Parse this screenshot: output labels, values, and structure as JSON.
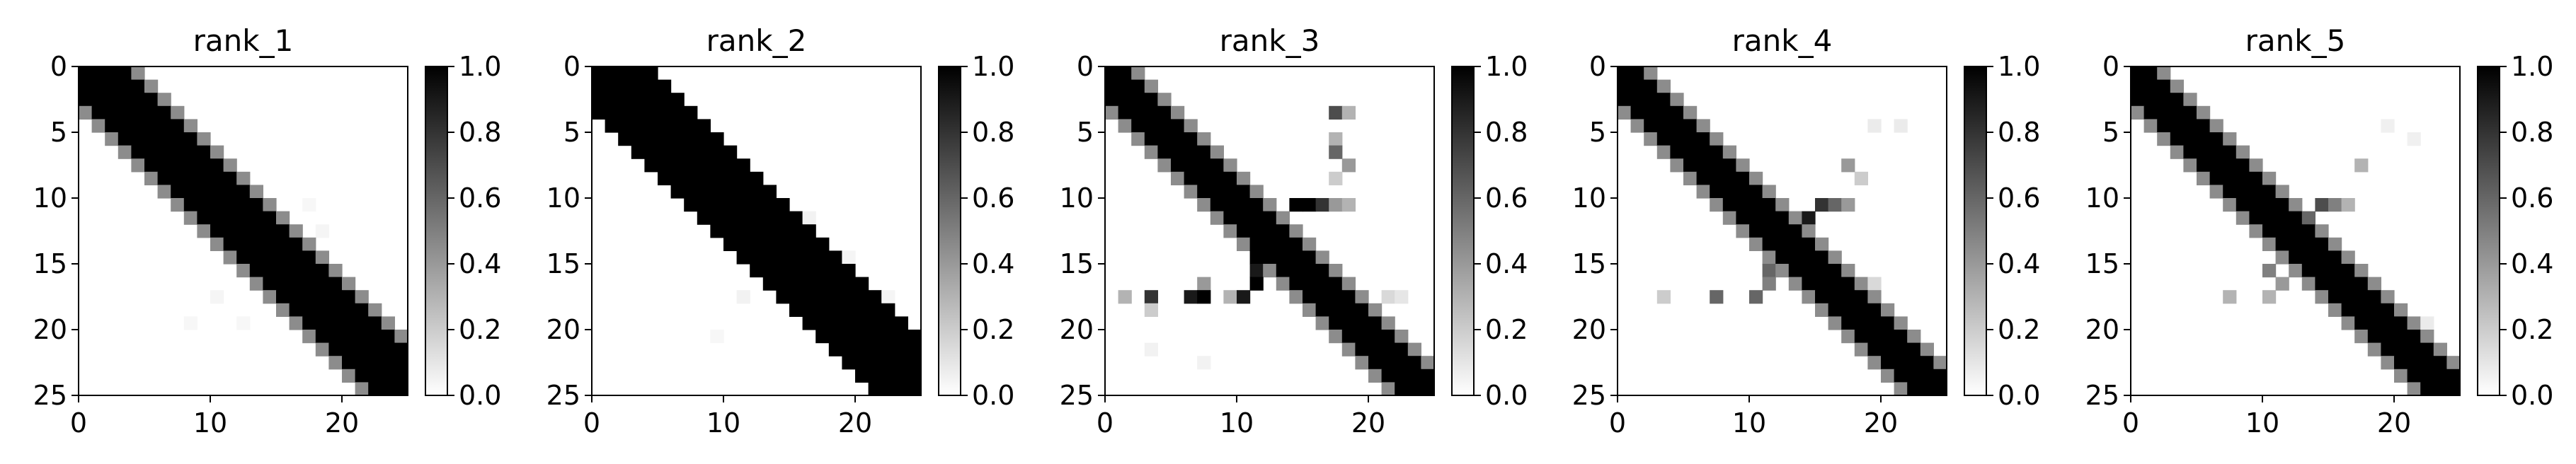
{
  "figure": {
    "background": "#ffffff",
    "colormap": "gray_r (0 = white, 1 = black)"
  },
  "chart_data": [
    {
      "type": "heatmap",
      "title": "rank_1",
      "x_ticks": [
        0,
        10,
        20
      ],
      "y_ticks": [
        0,
        5,
        10,
        15,
        20,
        25
      ],
      "xlim": [
        0,
        25
      ],
      "ylim": [
        25,
        0
      ],
      "colorbar": {
        "ticks": [
          "0.0",
          "0.2",
          "0.4",
          "0.6",
          "0.8",
          "1.0"
        ],
        "range": [
          0,
          1
        ]
      },
      "matrix_size": 25,
      "band": {
        "width": 6.5,
        "start_offset": 0.5,
        "slope": 1.0
      },
      "extra_cells": [
        {
          "x": 15,
          "y": 11,
          "value": 0.04
        },
        {
          "x": 16,
          "y": 12,
          "value": 0.05
        },
        {
          "x": 17,
          "y": 10,
          "value": 0.03
        },
        {
          "x": 18,
          "y": 12,
          "value": 0.04
        },
        {
          "x": 10,
          "y": 17,
          "value": 0.04
        },
        {
          "x": 8,
          "y": 19,
          "value": 0.03
        },
        {
          "x": 12,
          "y": 19,
          "value": 0.03
        }
      ]
    },
    {
      "type": "heatmap",
      "title": "rank_2",
      "x_ticks": [
        0,
        10,
        20
      ],
      "y_ticks": [
        0,
        5,
        10,
        15,
        20,
        25
      ],
      "xlim": [
        0,
        25
      ],
      "ylim": [
        25,
        0
      ],
      "colorbar": {
        "ticks": [
          "0.0",
          "0.2",
          "0.4",
          "0.6",
          "0.8",
          "1.0"
        ],
        "range": [
          0,
          1
        ]
      },
      "matrix_size": 25,
      "band": {
        "width": 7.0,
        "start_offset": 0.5,
        "slope": 1.0
      },
      "extra_cells": [
        {
          "x": 16,
          "y": 11,
          "value": 0.05
        },
        {
          "x": 17,
          "y": 13,
          "value": 0.05
        },
        {
          "x": 19,
          "y": 14,
          "value": 0.04
        },
        {
          "x": 11,
          "y": 17,
          "value": 0.05
        },
        {
          "x": 9,
          "y": 20,
          "value": 0.03
        },
        {
          "x": 22,
          "y": 17,
          "value": 0.04
        }
      ]
    },
    {
      "type": "heatmap",
      "title": "rank_3",
      "x_ticks": [
        0,
        10,
        20
      ],
      "y_ticks": [
        0,
        5,
        10,
        15,
        20,
        25
      ],
      "xlim": [
        0,
        25
      ],
      "ylim": [
        25,
        0
      ],
      "colorbar": {
        "ticks": [
          "0.0",
          "0.2",
          "0.4",
          "0.6",
          "0.8",
          "1.0"
        ],
        "range": [
          0,
          1
        ]
      },
      "matrix_size": 25,
      "band": {
        "width": 4.5,
        "start_offset": -0.5,
        "slope": 1.0
      },
      "extra_cells": [
        {
          "x": 17,
          "y": 3,
          "value": 0.7
        },
        {
          "x": 18,
          "y": 3,
          "value": 0.3
        },
        {
          "x": 17,
          "y": 5,
          "value": 0.3
        },
        {
          "x": 17,
          "y": 6,
          "value": 0.6
        },
        {
          "x": 18,
          "y": 7,
          "value": 0.4
        },
        {
          "x": 17,
          "y": 8,
          "value": 0.2
        },
        {
          "x": 14,
          "y": 10,
          "value": 1.0
        },
        {
          "x": 15,
          "y": 10,
          "value": 1.0
        },
        {
          "x": 16,
          "y": 10,
          "value": 0.8
        },
        {
          "x": 17,
          "y": 10,
          "value": 0.4
        },
        {
          "x": 18,
          "y": 10,
          "value": 0.3
        },
        {
          "x": 11,
          "y": 13,
          "value": 1.0
        },
        {
          "x": 11,
          "y": 14,
          "value": 1.0
        },
        {
          "x": 11,
          "y": 15,
          "value": 0.9
        },
        {
          "x": 11,
          "y": 16,
          "value": 1.0
        },
        {
          "x": 10,
          "y": 17,
          "value": 0.9
        },
        {
          "x": 9,
          "y": 17,
          "value": 0.3
        },
        {
          "x": 6,
          "y": 17,
          "value": 0.9
        },
        {
          "x": 7,
          "y": 17,
          "value": 1.0
        },
        {
          "x": 3,
          "y": 17,
          "value": 0.8
        },
        {
          "x": 1,
          "y": 17,
          "value": 0.3
        },
        {
          "x": 7,
          "y": 16,
          "value": 0.4
        },
        {
          "x": 3,
          "y": 18,
          "value": 0.2
        },
        {
          "x": 19,
          "y": 17,
          "value": 0.3
        },
        {
          "x": 20,
          "y": 18,
          "value": 0.2
        },
        {
          "x": 21,
          "y": 17,
          "value": 0.15
        },
        {
          "x": 22,
          "y": 17,
          "value": 0.1
        },
        {
          "x": 3,
          "y": 21,
          "value": 0.05
        },
        {
          "x": 7,
          "y": 22,
          "value": 0.05
        }
      ]
    },
    {
      "type": "heatmap",
      "title": "rank_4",
      "x_ticks": [
        0,
        10,
        20
      ],
      "y_ticks": [
        0,
        5,
        10,
        15,
        20,
        25
      ],
      "xlim": [
        0,
        25
      ],
      "ylim": [
        25,
        0
      ],
      "colorbar": {
        "ticks": [
          "0.0",
          "0.2",
          "0.4",
          "0.6",
          "0.8",
          "1.0"
        ],
        "range": [
          0,
          1
        ]
      },
      "matrix_size": 25,
      "band": {
        "width": 4.5,
        "start_offset": -0.5,
        "slope": 1.0
      },
      "extra_cells": [
        {
          "x": 15,
          "y": 10,
          "value": 0.8
        },
        {
          "x": 16,
          "y": 10,
          "value": 0.6
        },
        {
          "x": 17,
          "y": 10,
          "value": 0.4
        },
        {
          "x": 14,
          "y": 11,
          "value": 0.9
        },
        {
          "x": 17,
          "y": 7,
          "value": 0.4
        },
        {
          "x": 18,
          "y": 8,
          "value": 0.2
        },
        {
          "x": 11,
          "y": 15,
          "value": 0.6
        },
        {
          "x": 11,
          "y": 16,
          "value": 0.5
        },
        {
          "x": 10,
          "y": 17,
          "value": 0.6
        },
        {
          "x": 7,
          "y": 17,
          "value": 0.6
        },
        {
          "x": 3,
          "y": 17,
          "value": 0.2
        },
        {
          "x": 19,
          "y": 16,
          "value": 0.15
        },
        {
          "x": 20,
          "y": 18,
          "value": 0.15
        },
        {
          "x": 21,
          "y": 19,
          "value": 0.1
        },
        {
          "x": 19,
          "y": 4,
          "value": 0.08
        },
        {
          "x": 21,
          "y": 4,
          "value": 0.08
        }
      ]
    },
    {
      "type": "heatmap",
      "title": "rank_5",
      "x_ticks": [
        0,
        10,
        20
      ],
      "y_ticks": [
        0,
        5,
        10,
        15,
        20,
        25
      ],
      "xlim": [
        0,
        25
      ],
      "ylim": [
        25,
        0
      ],
      "colorbar": {
        "ticks": [
          "0.0",
          "0.2",
          "0.4",
          "0.6",
          "0.8",
          "1.0"
        ],
        "range": [
          0,
          1
        ]
      },
      "matrix_size": 25,
      "band": {
        "width": 4.5,
        "start_offset": -0.5,
        "slope": 1.0
      },
      "extra_cells": [
        {
          "x": 14,
          "y": 10,
          "value": 0.7
        },
        {
          "x": 15,
          "y": 10,
          "value": 0.5
        },
        {
          "x": 16,
          "y": 10,
          "value": 0.3
        },
        {
          "x": 13,
          "y": 11,
          "value": 0.6
        },
        {
          "x": 17,
          "y": 7,
          "value": 0.3
        },
        {
          "x": 10,
          "y": 15,
          "value": 0.5
        },
        {
          "x": 11,
          "y": 16,
          "value": 0.4
        },
        {
          "x": 10,
          "y": 17,
          "value": 0.3
        },
        {
          "x": 7,
          "y": 17,
          "value": 0.3
        },
        {
          "x": 19,
          "y": 4,
          "value": 0.06
        },
        {
          "x": 21,
          "y": 5,
          "value": 0.06
        },
        {
          "x": 20,
          "y": 18,
          "value": 0.1
        },
        {
          "x": 22,
          "y": 19,
          "value": 0.08
        }
      ]
    }
  ]
}
